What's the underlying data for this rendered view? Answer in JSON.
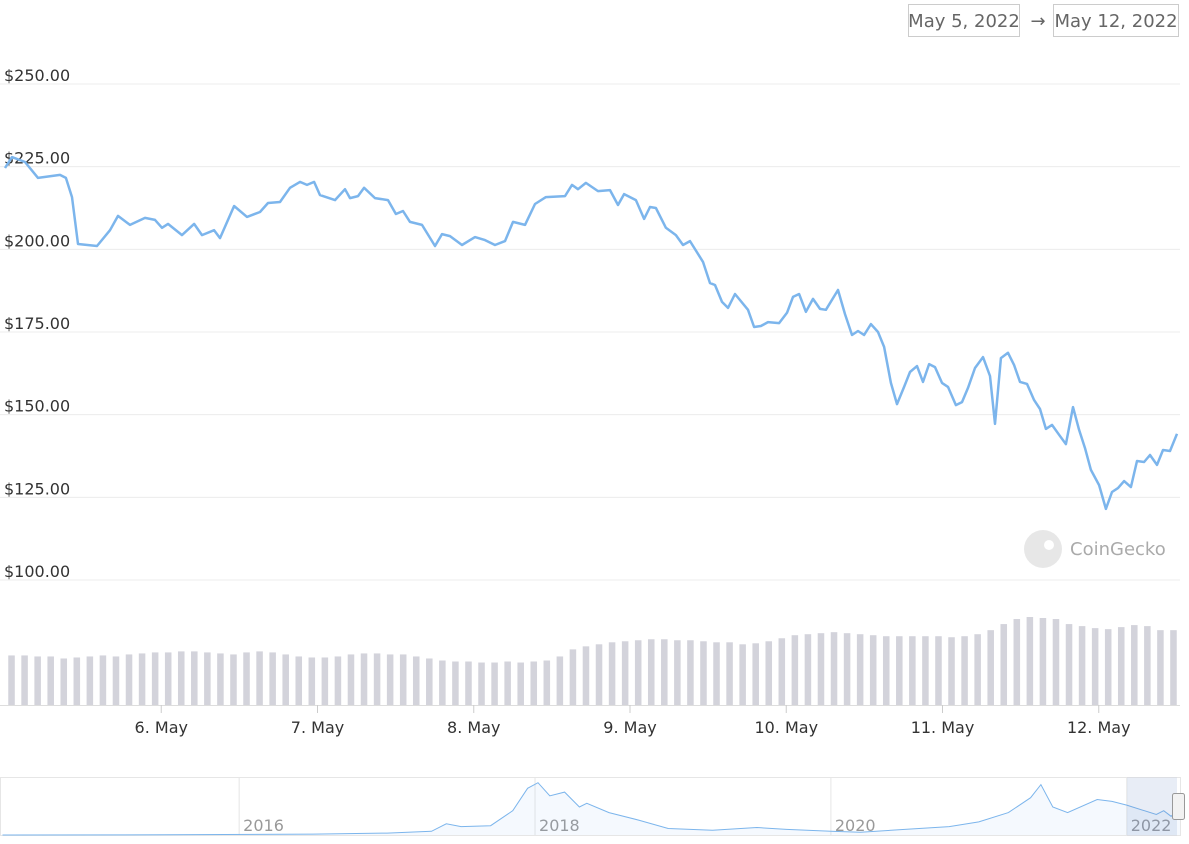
{
  "chart_data": {
    "type": "line",
    "date_range": {
      "from": "May 5, 2022",
      "separator": "→",
      "to": "May 12, 2022"
    },
    "watermark": "CoinGecko",
    "series": [
      {
        "color": "#7cb5ec",
        "x": [
          5.0,
          5.045,
          5.128,
          5.211,
          5.352,
          5.39,
          5.429,
          5.467,
          5.589,
          5.672,
          5.723,
          5.8,
          5.896,
          5.96,
          6.005,
          6.043,
          6.133,
          6.21,
          6.261,
          6.338,
          6.376,
          6.466,
          6.549,
          6.632,
          6.683,
          6.76,
          6.824,
          6.888,
          6.933,
          6.978,
          7.016,
          7.112,
          7.176,
          7.208,
          7.259,
          7.298,
          7.368,
          7.451,
          7.502,
          7.547,
          7.592,
          7.669,
          7.752,
          7.797,
          7.848,
          7.925,
          8.008,
          8.072,
          8.136,
          8.2,
          8.251,
          8.328,
          8.392,
          8.462,
          8.584,
          8.629,
          8.667,
          8.718,
          8.795,
          8.872,
          8.923,
          8.962,
          9.038,
          9.09,
          9.128,
          9.166,
          9.23,
          9.294,
          9.339,
          9.384,
          9.467,
          9.512,
          9.544,
          9.589,
          9.627,
          9.672,
          9.755,
          9.794,
          9.838,
          9.883,
          9.954,
          10.005,
          10.043,
          10.082,
          10.126,
          10.171,
          10.216,
          10.254,
          10.331,
          10.376,
          10.421,
          10.459,
          10.498,
          10.542,
          10.587,
          10.626,
          10.67,
          10.709,
          10.754,
          10.792,
          10.837,
          10.875,
          10.914,
          10.952,
          10.997,
          11.035,
          11.086,
          11.125,
          11.163,
          11.208,
          11.259,
          11.304,
          11.336,
          11.374,
          11.419,
          11.458,
          11.496,
          11.541,
          11.586,
          11.624,
          11.662,
          11.701,
          11.746,
          11.79,
          11.835,
          11.874,
          11.912,
          11.95,
          12.002,
          12.046,
          12.085,
          12.123,
          12.162,
          12.206,
          12.245,
          12.29,
          12.328,
          12.373,
          12.411,
          12.456,
          12.501
        ],
        "values": [
          224.6,
          227.9,
          226.4,
          221.6,
          222.5,
          221.6,
          215.8,
          201.6,
          201.0,
          205.8,
          210.1,
          207.4,
          209.5,
          208.9,
          206.5,
          207.7,
          204.3,
          207.7,
          204.3,
          205.8,
          203.4,
          213.1,
          209.8,
          211.3,
          214.0,
          214.3,
          218.6,
          220.4,
          219.5,
          220.4,
          216.4,
          214.9,
          218.2,
          215.5,
          216.1,
          218.6,
          215.5,
          214.9,
          210.7,
          211.6,
          208.3,
          207.4,
          201.0,
          204.6,
          204.0,
          201.3,
          203.7,
          202.8,
          201.3,
          202.5,
          208.3,
          207.4,
          213.7,
          215.8,
          216.1,
          219.5,
          218.2,
          220.1,
          217.6,
          217.9,
          213.4,
          216.7,
          214.9,
          209.2,
          212.8,
          212.5,
          206.5,
          204.3,
          201.3,
          202.5,
          196.2,
          189.8,
          189.2,
          184.1,
          182.3,
          186.5,
          181.7,
          176.5,
          176.8,
          178.0,
          177.7,
          180.8,
          185.6,
          186.5,
          181.1,
          185.0,
          182.0,
          181.7,
          187.7,
          180.4,
          174.1,
          175.3,
          174.1,
          177.4,
          175.0,
          170.5,
          159.6,
          153.2,
          158.4,
          162.9,
          164.7,
          159.9,
          165.3,
          164.4,
          159.6,
          158.4,
          152.9,
          153.8,
          158.1,
          164.1,
          167.4,
          161.7,
          147.2,
          167.1,
          168.7,
          165.0,
          159.9,
          159.3,
          154.4,
          151.7,
          145.7,
          146.9,
          143.9,
          141.1,
          152.3,
          145.4,
          139.9,
          133.3,
          128.7,
          121.5,
          126.6,
          127.8,
          129.9,
          128.1,
          136.0,
          135.7,
          137.8,
          134.8,
          139.3,
          139.0,
          144.2
        ]
      }
    ],
    "volume": [
      49,
      49,
      48,
      48,
      46,
      47,
      48,
      49,
      48,
      50,
      51,
      52,
      52,
      53,
      53,
      52,
      51,
      50,
      52,
      53,
      52,
      50,
      48,
      47,
      47,
      48,
      50,
      51,
      51,
      50,
      50,
      48,
      46,
      44,
      43,
      43,
      42,
      42,
      43,
      42,
      43,
      44,
      48,
      55,
      58,
      60,
      62,
      63,
      64,
      65,
      65,
      64,
      64,
      63,
      62,
      62,
      60,
      61,
      63,
      66,
      69,
      70,
      71,
      72,
      71,
      70,
      69,
      68,
      68,
      68,
      68,
      68,
      67,
      68,
      70,
      74,
      80,
      85,
      87,
      86,
      85,
      80,
      78,
      76,
      75,
      77,
      79,
      78,
      74,
      74
    ],
    "xlim": [
      5,
      12.52
    ],
    "xticks": [
      {
        "value": 6,
        "label": "6. May"
      },
      {
        "value": 7,
        "label": "7. May"
      },
      {
        "value": 8,
        "label": "8. May"
      },
      {
        "value": 9,
        "label": "9. May"
      },
      {
        "value": 10,
        "label": "10. May"
      },
      {
        "value": 11,
        "label": "11. May"
      },
      {
        "value": 12,
        "label": "12. May"
      }
    ],
    "ylim": [
      100,
      250
    ],
    "yticks": [
      {
        "value": 100,
        "label": "$100.00"
      },
      {
        "value": 125,
        "label": "$125.00"
      },
      {
        "value": 150,
        "label": "$150.00"
      },
      {
        "value": 175,
        "label": "$175.00"
      },
      {
        "value": 200,
        "label": "$200.00"
      },
      {
        "value": 225,
        "label": "$225.00"
      },
      {
        "value": 250,
        "label": "$250.00"
      }
    ],
    "grid": true,
    "navigator": {
      "x": [
        2014.4,
        2015.5,
        2016.5,
        2017.0,
        2017.3,
        2017.4,
        2017.5,
        2017.7,
        2017.85,
        2017.95,
        2018.02,
        2018.1,
        2018.2,
        2018.3,
        2018.35,
        2018.5,
        2018.7,
        2018.9,
        2019.2,
        2019.5,
        2019.7,
        2020.0,
        2020.2,
        2020.5,
        2020.8,
        2021.0,
        2021.2,
        2021.35,
        2021.42,
        2021.5,
        2021.6,
        2021.8,
        2021.9,
        2022.0,
        2022.2,
        2022.25,
        2022.3,
        2022.36
      ],
      "values": [
        0,
        1,
        5,
        10,
        20,
        60,
        45,
        50,
        130,
        250,
        280,
        210,
        230,
        150,
        170,
        120,
        80,
        35,
        25,
        40,
        30,
        20,
        15,
        30,
        45,
        70,
        120,
        200,
        270,
        150,
        120,
        190,
        180,
        160,
        110,
        130,
        100,
        140
      ],
      "xlim": [
        2014.39,
        2022.36
      ],
      "ylim": [
        0,
        300
      ],
      "xticks": [
        {
          "value": 2016,
          "label": "2016"
        },
        {
          "value": 2018,
          "label": "2018"
        },
        {
          "value": 2020,
          "label": "2020"
        },
        {
          "value": 2022,
          "label": "2022"
        }
      ]
    }
  }
}
